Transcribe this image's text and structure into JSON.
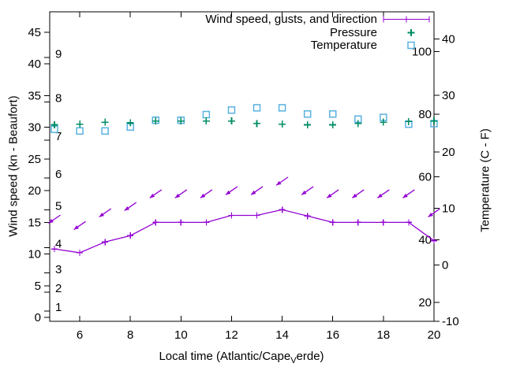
{
  "page": {
    "background": "#ffffff"
  },
  "legend": [
    {
      "label": "Wind speed, gusts, and direction",
      "sample": "errorbar-line",
      "color": "#9400d3"
    },
    {
      "label": "Pressure",
      "sample": "plus-marker",
      "color": "#008c64"
    },
    {
      "label": "Temperature",
      "sample": "open-square-marker",
      "color": "#58b2e0"
    }
  ],
  "axis_titles": {
    "left": "Wind speed (kn - Beaufort)",
    "right": "Temperature (C - F)",
    "bottom_pre": "Local time (Atlantic/Cape",
    "bottom_sub": "V",
    "bottom_post": "erde)"
  },
  "chart_data": {
    "type": "line",
    "title": "",
    "xlabel": "Local time (Atlantic/Cape_Verde)",
    "ylabel_left": "Wind speed (kn - Beaufort)",
    "ylabel_right": "Temperature (C - F)",
    "x_hours": [
      5,
      6,
      7,
      8,
      9,
      10,
      11,
      12,
      13,
      14,
      15,
      16,
      17,
      18,
      19,
      20
    ],
    "x_ticks": [
      6,
      8,
      10,
      12,
      14,
      16,
      18,
      20
    ],
    "x_range": [
      4.8,
      20
    ],
    "left_axis_ticks_kn": [
      0,
      5,
      10,
      15,
      20,
      25,
      30,
      35,
      40,
      45
    ],
    "left_axis_range_kn": [
      0,
      48
    ],
    "right_axis_ticks_c": [
      -10,
      0,
      10,
      20,
      30,
      40
    ],
    "right_axis_range_c": [
      -10,
      45
    ],
    "beaufort_scale_labels": [
      {
        "beaufort": 1,
        "kn": 1
      },
      {
        "beaufort": 2,
        "kn": 4
      },
      {
        "beaufort": 3,
        "kn": 7
      },
      {
        "beaufort": 4,
        "kn": 11
      },
      {
        "beaufort": 5,
        "kn": 17
      },
      {
        "beaufort": 6,
        "kn": 22
      },
      {
        "beaufort": 7,
        "kn": 28
      },
      {
        "beaufort": 8,
        "kn": 34
      },
      {
        "beaufort": 9,
        "kn": 41
      }
    ],
    "fahrenheit_scale_labels": [
      20,
      40,
      60,
      80,
      100
    ],
    "series": [
      {
        "name": "Wind speed, gusts, and direction",
        "color": "#9400d3",
        "style": "line-with-plus-markers-and-direction-arrows",
        "speed_kn": [
          10.8,
          10.2,
          11.9,
          12.9,
          15.0,
          15.0,
          15.0,
          16.1,
          16.1,
          17.0,
          16.0,
          15.0,
          15.0,
          15.0,
          15.0,
          12.1
        ],
        "gusts_kn": [
          15.5,
          14.5,
          16.5,
          17.5,
          19.5,
          19.5,
          19.5,
          20.0,
          20.0,
          21.5,
          20.0,
          19.5,
          19.5,
          19.5,
          19.5,
          16.5
        ],
        "direction_arrows_point_to_deg": 225
      },
      {
        "name": "Pressure",
        "color": "#008c64",
        "style": "plus-markers",
        "values_inhg": [
          30.4,
          30.5,
          30.8,
          30.7,
          31.0,
          31.0,
          31.0,
          31.0,
          30.6,
          30.5,
          30.4,
          30.4,
          30.6,
          30.8,
          30.9,
          31.0
        ]
      },
      {
        "name": "Temperature",
        "color": "#58b2e0",
        "style": "open-square-markers",
        "values_c": [
          24.0,
          23.7,
          23.7,
          24.4,
          25.6,
          25.6,
          26.6,
          27.4,
          27.8,
          27.8,
          26.7,
          26.7,
          25.8,
          26.1,
          24.9,
          25.0
        ]
      }
    ]
  }
}
